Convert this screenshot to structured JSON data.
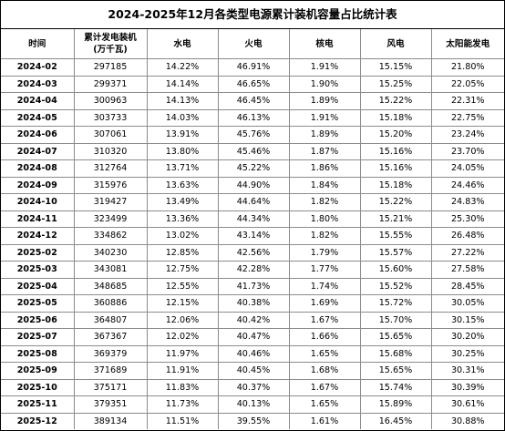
{
  "title": "2024-2025年12月各类型电源累计装机容量占比统计表",
  "headers": {
    "time": "时间",
    "capacity_line1": "累计发电装机",
    "capacity_line2": "(万千瓦)",
    "hydro": "水电",
    "thermal": "火电",
    "nuclear": "核电",
    "wind": "风电",
    "solar": "太阳能发电"
  },
  "rows": [
    {
      "time": "2024-02",
      "capacity": "297185",
      "hydro": "14.22%",
      "thermal": "46.91%",
      "nuclear": "1.91%",
      "wind": "15.15%",
      "solar": "21.80%"
    },
    {
      "time": "2024-03",
      "capacity": "299371",
      "hydro": "14.14%",
      "thermal": "46.65%",
      "nuclear": "1.90%",
      "wind": "15.25%",
      "solar": "22.05%"
    },
    {
      "time": "2024-04",
      "capacity": "300963",
      "hydro": "14.13%",
      "thermal": "46.45%",
      "nuclear": "1.89%",
      "wind": "15.22%",
      "solar": "22.31%"
    },
    {
      "time": "2024-05",
      "capacity": "303733",
      "hydro": "14.03%",
      "thermal": "46.13%",
      "nuclear": "1.91%",
      "wind": "15.18%",
      "solar": "22.75%"
    },
    {
      "time": "2024-06",
      "capacity": "307061",
      "hydro": "13.91%",
      "thermal": "45.76%",
      "nuclear": "1.89%",
      "wind": "15.20%",
      "solar": "23.24%"
    },
    {
      "time": "2024-07",
      "capacity": "310320",
      "hydro": "13.80%",
      "thermal": "45.46%",
      "nuclear": "1.87%",
      "wind": "15.16%",
      "solar": "23.70%"
    },
    {
      "time": "2024-08",
      "capacity": "312764",
      "hydro": "13.71%",
      "thermal": "45.22%",
      "nuclear": "1.86%",
      "wind": "15.16%",
      "solar": "24.05%"
    },
    {
      "time": "2024-09",
      "capacity": "315976",
      "hydro": "13.63%",
      "thermal": "44.90%",
      "nuclear": "1.84%",
      "wind": "15.18%",
      "solar": "24.46%"
    },
    {
      "time": "2024-10",
      "capacity": "319427",
      "hydro": "13.49%",
      "thermal": "44.64%",
      "nuclear": "1.82%",
      "wind": "15.22%",
      "solar": "24.83%"
    },
    {
      "time": "2024-11",
      "capacity": "323499",
      "hydro": "13.36%",
      "thermal": "44.34%",
      "nuclear": "1.80%",
      "wind": "15.21%",
      "solar": "25.30%"
    },
    {
      "time": "2024-12",
      "capacity": "334862",
      "hydro": "13.02%",
      "thermal": "43.14%",
      "nuclear": "1.82%",
      "wind": "15.55%",
      "solar": "26.48%"
    },
    {
      "time": "2025-02",
      "capacity": "340230",
      "hydro": "12.85%",
      "thermal": "42.56%",
      "nuclear": "1.79%",
      "wind": "15.57%",
      "solar": "27.22%"
    },
    {
      "time": "2025-03",
      "capacity": "343081",
      "hydro": "12.75%",
      "thermal": "42.28%",
      "nuclear": "1.77%",
      "wind": "15.60%",
      "solar": "27.58%"
    },
    {
      "time": "2025-04",
      "capacity": "348685",
      "hydro": "12.55%",
      "thermal": "41.73%",
      "nuclear": "1.74%",
      "wind": "15.52%",
      "solar": "28.45%"
    },
    {
      "time": "2025-05",
      "capacity": "360886",
      "hydro": "12.15%",
      "thermal": "40.38%",
      "nuclear": "1.69%",
      "wind": "15.72%",
      "solar": "30.05%"
    },
    {
      "time": "2025-06",
      "capacity": "364807",
      "hydro": "12.06%",
      "thermal": "40.42%",
      "nuclear": "1.67%",
      "wind": "15.70%",
      "solar": "30.15%"
    },
    {
      "time": "2025-07",
      "capacity": "367367",
      "hydro": "12.02%",
      "thermal": "40.47%",
      "nuclear": "1.66%",
      "wind": "15.65%",
      "solar": "30.20%"
    },
    {
      "time": "2025-08",
      "capacity": "369379",
      "hydro": "11.97%",
      "thermal": "40.46%",
      "nuclear": "1.65%",
      "wind": "15.68%",
      "solar": "30.25%"
    },
    {
      "time": "2025-09",
      "capacity": "371689",
      "hydro": "11.91%",
      "thermal": "40.45%",
      "nuclear": "1.68%",
      "wind": "15.65%",
      "solar": "30.31%"
    },
    {
      "time": "2025-10",
      "capacity": "375171",
      "hydro": "11.83%",
      "thermal": "40.37%",
      "nuclear": "1.67%",
      "wind": "15.74%",
      "solar": "30.39%"
    },
    {
      "time": "2025-11",
      "capacity": "379351",
      "hydro": "11.73%",
      "thermal": "40.13%",
      "nuclear": "1.65%",
      "wind": "15.89%",
      "solar": "30.61%"
    },
    {
      "time": "2025-12",
      "capacity": "389134",
      "hydro": "11.51%",
      "thermal": "39.55%",
      "nuclear": "1.61%",
      "wind": "16.45%",
      "solar": "30.88%"
    }
  ]
}
